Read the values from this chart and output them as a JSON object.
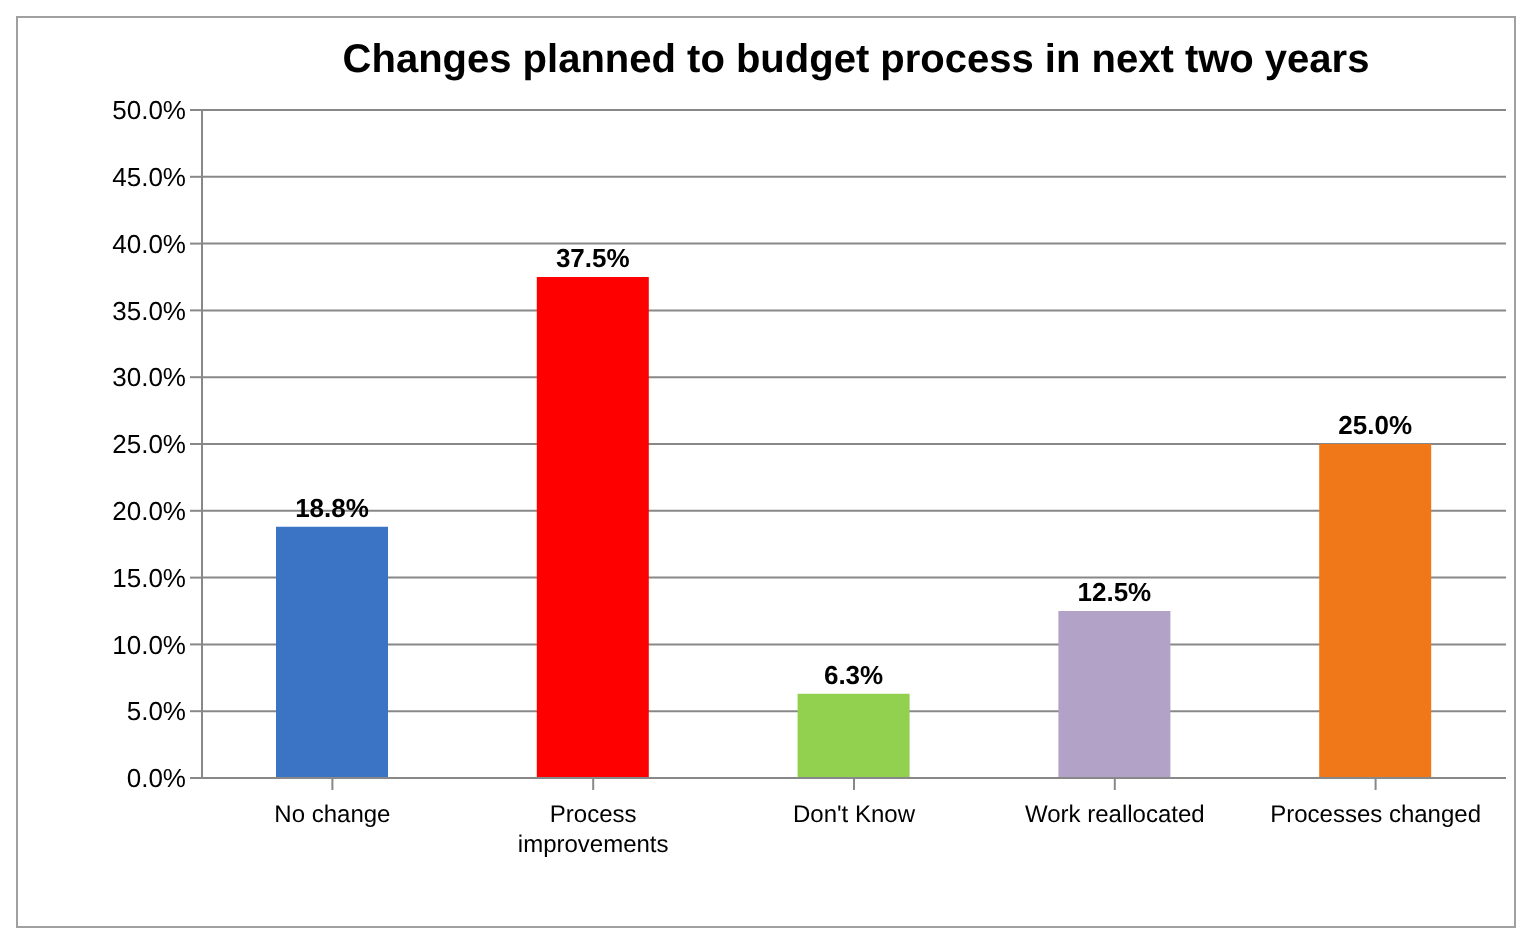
{
  "chart_data": {
    "type": "bar",
    "title": "Changes planned to budget process in next two years",
    "categories": [
      "No change",
      "Process improvements",
      "Don't Know",
      "Work reallocated",
      "Processes changed"
    ],
    "values": [
      18.8,
      37.5,
      6.3,
      12.5,
      25.0
    ],
    "value_labels": [
      "18.8%",
      "37.5%",
      "6.3%",
      "12.5%",
      "25.0%"
    ],
    "colors": [
      "#3b74c4",
      "#ff0000",
      "#92d050",
      "#b3a2c7",
      "#f07818"
    ],
    "ylim": [
      0,
      50
    ],
    "yticks": [
      {
        "value": 0,
        "label": "0.0%"
      },
      {
        "value": 5,
        "label": "5.0%"
      },
      {
        "value": 10,
        "label": "10.0%"
      },
      {
        "value": 15,
        "label": "15.0%"
      },
      {
        "value": 20,
        "label": "20.0%"
      },
      {
        "value": 25,
        "label": "25.0%"
      },
      {
        "value": 30,
        "label": "30.0%"
      },
      {
        "value": 35,
        "label": "35.0%"
      },
      {
        "value": 40,
        "label": "40.0%"
      },
      {
        "value": 45,
        "label": "45.0%"
      },
      {
        "value": 50,
        "label": "50.0%"
      }
    ],
    "grid": "y",
    "legend": false
  }
}
